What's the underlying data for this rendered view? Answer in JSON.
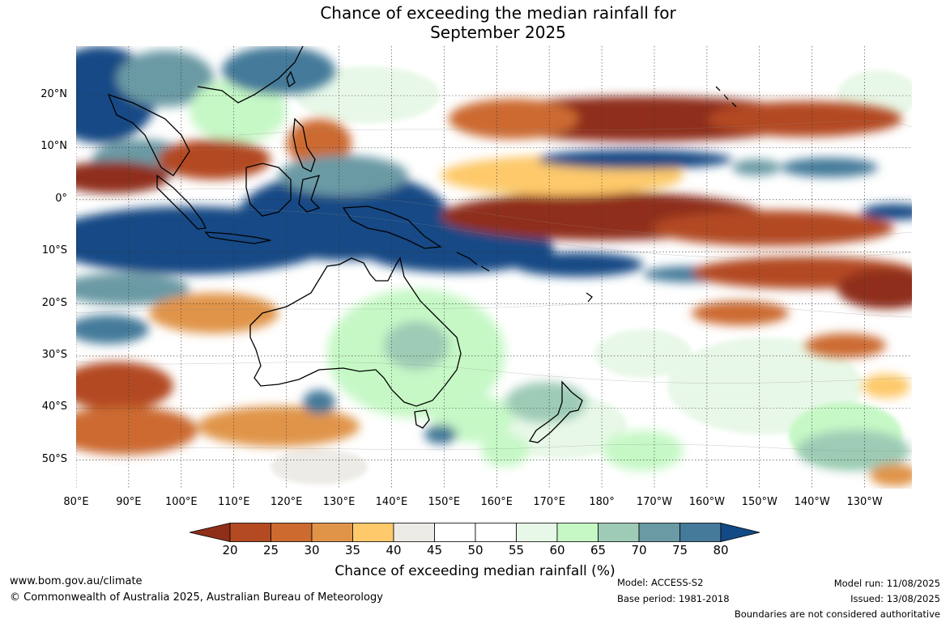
{
  "title_line1": "Chance of exceeding the median rainfall for",
  "title_line2": "September 2025",
  "map": {
    "lat_labels": [
      "20°N",
      "10°N",
      "0°",
      "10°S",
      "20°S",
      "30°S",
      "40°S",
      "50°S"
    ],
    "lon_labels": [
      "80°E",
      "90°E",
      "100°E",
      "110°E",
      "120°E",
      "130°E",
      "140°E",
      "150°E",
      "160°E",
      "170°E",
      "180°",
      "170°W",
      "160°W",
      "150°W",
      "140°W",
      "130°W"
    ],
    "extent": {
      "lon_min": 80,
      "lon_max": 239,
      "lat_min": -55.5,
      "lat_max": 29.5
    }
  },
  "colorbar": {
    "ticks": [
      "20",
      "25",
      "30",
      "35",
      "40",
      "45",
      "50",
      "55",
      "60",
      "65",
      "70",
      "75",
      "80"
    ],
    "colors": [
      "#8f2f1a",
      "#b34a22",
      "#cc6a30",
      "#e09448",
      "#fdc96a",
      "#edebe6",
      "#ffffff",
      "#ffffff",
      "#e8f8e8",
      "#c6f8c6",
      "#9dcbb5",
      "#6a9aa4",
      "#457a9a",
      "#124a85"
    ],
    "label": "Chance of exceeding median rainfall (%)"
  },
  "footer": {
    "website": "www.bom.gov.au/climate",
    "copyright": "© Commonwealth of Australia 2025, Australian Bureau of Meteorology",
    "model": "Model: ACCESS-S2",
    "base_period": "Base period: 1981-2018",
    "model_run": "Model run: 11/08/2025",
    "issued": "Issued: 13/08/2025",
    "disclaimer": "Boundaries are not considered authoritative"
  }
}
